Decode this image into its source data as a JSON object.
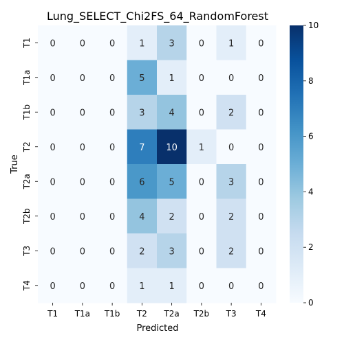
{
  "chart_data": {
    "type": "heatmap",
    "title": "Lung_SELECT_Chi2FS_64_RandomForest",
    "xlabel": "Predicted",
    "ylabel": "True",
    "x_categories": [
      "T1",
      "T1a",
      "T1b",
      "T2",
      "T2a",
      "T2b",
      "T3",
      "T4"
    ],
    "y_categories": [
      "T1",
      "T1a",
      "T1b",
      "T2",
      "T2a",
      "T2b",
      "T3",
      "T4"
    ],
    "values": [
      [
        0,
        0,
        0,
        1,
        3,
        0,
        1,
        0
      ],
      [
        0,
        0,
        0,
        5,
        1,
        0,
        0,
        0
      ],
      [
        0,
        0,
        0,
        3,
        4,
        0,
        2,
        0
      ],
      [
        0,
        0,
        0,
        7,
        10,
        1,
        0,
        0
      ],
      [
        0,
        0,
        0,
        6,
        5,
        0,
        3,
        0
      ],
      [
        0,
        0,
        0,
        4,
        2,
        0,
        2,
        0
      ],
      [
        0,
        0,
        0,
        2,
        3,
        0,
        2,
        0
      ],
      [
        0,
        0,
        0,
        1,
        1,
        0,
        0,
        0
      ]
    ],
    "colorbar": {
      "min": 0,
      "max": 10,
      "ticks": [
        0,
        2,
        4,
        6,
        8,
        10
      ]
    },
    "colormap": "Blues",
    "colormap_stops": [
      "#f7fbff",
      "#deebf7",
      "#c6dbef",
      "#9ecae1",
      "#6baed6",
      "#4292c6",
      "#2171b5",
      "#08519c",
      "#08306b"
    ]
  }
}
